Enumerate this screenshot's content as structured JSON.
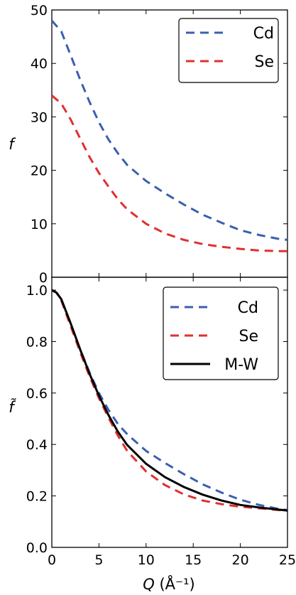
{
  "chart_data": [
    {
      "type": "line",
      "title": "",
      "ylabel": "f",
      "xlim": [
        0,
        25
      ],
      "ylim": [
        0,
        50
      ],
      "yticks": [
        "0",
        "10",
        "20",
        "30",
        "40",
        "50"
      ],
      "legend_position": "top-right",
      "series": [
        {
          "name": "Cd",
          "color": "#3b5fb0",
          "style": "dashed",
          "x": [
            0,
            1,
            2,
            3,
            4,
            5,
            6,
            7,
            8,
            10,
            12,
            14,
            16,
            18,
            20,
            22,
            24,
            25
          ],
          "y": [
            48.0,
            46.0,
            41.5,
            37.0,
            32.8,
            29.0,
            25.8,
            23.2,
            21.0,
            18.0,
            15.7,
            13.6,
            11.7,
            10.2,
            8.8,
            7.9,
            7.2,
            7.0
          ]
        },
        {
          "name": "Se",
          "color": "#e03030",
          "style": "dashed",
          "x": [
            0,
            1,
            2,
            3,
            4,
            5,
            6,
            7,
            8,
            10,
            12,
            14,
            16,
            18,
            20,
            22,
            24,
            25
          ],
          "y": [
            34.0,
            32.5,
            29.5,
            26.0,
            22.5,
            19.5,
            17.0,
            14.6,
            12.7,
            10.0,
            8.2,
            7.0,
            6.2,
            5.7,
            5.3,
            5.0,
            4.9,
            4.9
          ]
        }
      ]
    },
    {
      "type": "line",
      "title": "",
      "xlabel": "Q (Å⁻¹)",
      "ylabel": "f̃",
      "xlim": [
        0,
        25
      ],
      "ylim": [
        0.0,
        1.05
      ],
      "xticks": [
        "0",
        "5",
        "10",
        "15",
        "20",
        "25"
      ],
      "yticks": [
        "0.0",
        "0.2",
        "0.4",
        "0.6",
        "0.8",
        "1.0"
      ],
      "legend_position": "top-right",
      "series": [
        {
          "name": "Cd",
          "color": "#3b5fb0",
          "style": "dashed",
          "x": [
            0,
            0.5,
            1,
            2,
            3,
            4,
            5,
            6,
            7,
            8,
            10,
            12,
            14,
            16,
            18,
            20,
            22,
            24,
            25
          ],
          "y": [
            1.0,
            0.99,
            0.965,
            0.87,
            0.77,
            0.68,
            0.6,
            0.535,
            0.48,
            0.44,
            0.375,
            0.328,
            0.285,
            0.245,
            0.213,
            0.185,
            0.165,
            0.15,
            0.145
          ]
        },
        {
          "name": "Se",
          "color": "#e03030",
          "style": "dashed",
          "x": [
            0,
            0.5,
            1,
            2,
            3,
            4,
            5,
            6,
            7,
            8,
            10,
            12,
            14,
            16,
            18,
            20,
            22,
            24,
            25
          ],
          "y": [
            1.0,
            0.99,
            0.96,
            0.86,
            0.76,
            0.665,
            0.58,
            0.505,
            0.435,
            0.375,
            0.295,
            0.242,
            0.206,
            0.182,
            0.168,
            0.158,
            0.152,
            0.145,
            0.143
          ]
        },
        {
          "name": "M-W",
          "color": "#000000",
          "style": "solid",
          "x": [
            0,
            0.5,
            1,
            2,
            3,
            4,
            5,
            6,
            7,
            8,
            10,
            12,
            14,
            16,
            18,
            20,
            22,
            24,
            25
          ],
          "y": [
            1.0,
            0.99,
            0.965,
            0.87,
            0.77,
            0.675,
            0.59,
            0.515,
            0.45,
            0.398,
            0.325,
            0.273,
            0.235,
            0.205,
            0.182,
            0.165,
            0.155,
            0.147,
            0.143
          ]
        }
      ]
    }
  ],
  "xlabel_parts": {
    "var": "Q",
    "unit": " (Å⁻¹)"
  }
}
